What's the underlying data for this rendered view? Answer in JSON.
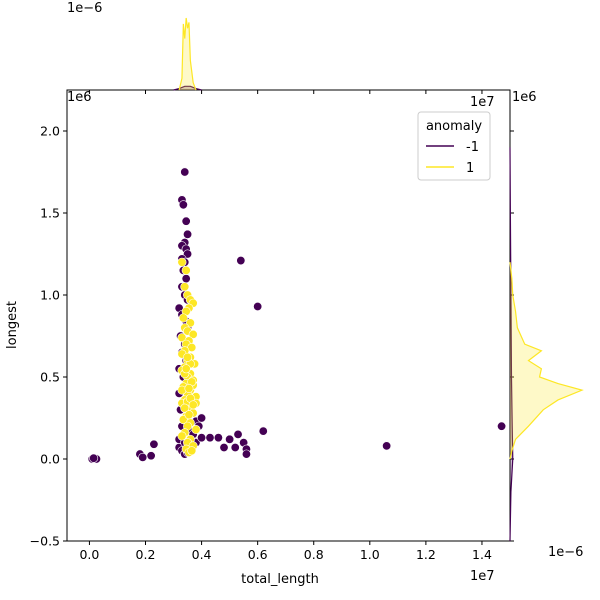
{
  "chart_data": {
    "type": "scatter",
    "xlabel": "total_length",
    "ylabel": "longest",
    "x_offset_label": "1e7",
    "y_offset_label": "1e6",
    "marg_x_offset_label": "1e−6",
    "marg_y_top_offset_label": "1e6",
    "marg_y_bottom_offset_label": "1e−6",
    "xlim": [
      -0.08,
      1.5
    ],
    "ylim": [
      -0.5,
      2.25
    ],
    "x_ticks": [
      0.0,
      0.2,
      0.4,
      0.6,
      0.8,
      1.0,
      1.2,
      1.4
    ],
    "x_tick_labels": [
      "0.0",
      "0.2",
      "0.4",
      "0.6",
      "0.8",
      "1.0",
      "1.2",
      "1.4"
    ],
    "y_ticks": [
      -0.5,
      0.0,
      0.5,
      1.0,
      1.5,
      2.0
    ],
    "y_tick_labels": [
      "−0.5",
      "0.0",
      "0.5",
      "1.0",
      "1.5",
      "2.0"
    ],
    "legend": {
      "title": "anomaly",
      "position": "top-right",
      "entries": [
        {
          "label": "-1",
          "color": "#440154"
        },
        {
          "label": "1",
          "color": "#fde725"
        }
      ]
    },
    "series": [
      {
        "name": "-1",
        "color": "#440154",
        "points": [
          [
            0.01,
            0.0
          ],
          [
            0.02,
            0.0
          ],
          [
            0.025,
            0.0
          ],
          [
            0.015,
            0.005
          ],
          [
            0.18,
            0.03
          ],
          [
            0.19,
            0.01
          ],
          [
            0.22,
            0.02
          ],
          [
            0.23,
            0.09
          ],
          [
            0.32,
            0.07
          ],
          [
            0.33,
            0.05
          ],
          [
            0.34,
            0.03
          ],
          [
            0.35,
            0.04
          ],
          [
            0.36,
            0.06
          ],
          [
            0.37,
            0.08
          ],
          [
            0.38,
            0.1
          ],
          [
            0.4,
            0.13
          ],
          [
            0.33,
            1.58
          ],
          [
            0.335,
            1.55
          ],
          [
            0.34,
            1.75
          ],
          [
            0.345,
            1.45
          ],
          [
            0.35,
            1.37
          ],
          [
            0.34,
            1.32
          ],
          [
            0.33,
            1.3
          ],
          [
            0.345,
            1.28
          ],
          [
            0.35,
            1.25
          ],
          [
            0.33,
            1.22
          ],
          [
            0.34,
            1.2
          ],
          [
            0.335,
            1.15
          ],
          [
            0.345,
            1.1
          ],
          [
            0.33,
            1.05
          ],
          [
            0.34,
            1.0
          ],
          [
            0.35,
            0.97
          ],
          [
            0.32,
            0.92
          ],
          [
            0.33,
            0.88
          ],
          [
            0.345,
            0.84
          ],
          [
            0.35,
            0.8
          ],
          [
            0.325,
            0.75
          ],
          [
            0.34,
            0.7
          ],
          [
            0.33,
            0.65
          ],
          [
            0.345,
            0.6
          ],
          [
            0.32,
            0.55
          ],
          [
            0.335,
            0.5
          ],
          [
            0.35,
            0.45
          ],
          [
            0.32,
            0.4
          ],
          [
            0.34,
            0.35
          ],
          [
            0.325,
            0.3
          ],
          [
            0.35,
            0.25
          ],
          [
            0.33,
            0.2
          ],
          [
            0.36,
            0.17
          ],
          [
            0.38,
            0.23
          ],
          [
            0.4,
            0.25
          ],
          [
            0.39,
            0.2
          ],
          [
            0.37,
            0.15
          ],
          [
            0.32,
            0.12
          ],
          [
            0.34,
            0.1
          ],
          [
            0.36,
            0.08
          ],
          [
            0.43,
            0.13
          ],
          [
            0.46,
            0.13
          ],
          [
            0.48,
            0.07
          ],
          [
            0.5,
            0.12
          ],
          [
            0.52,
            0.07
          ],
          [
            0.53,
            0.15
          ],
          [
            0.55,
            0.1
          ],
          [
            0.56,
            0.06
          ],
          [
            0.56,
            0.03
          ],
          [
            0.62,
            0.17
          ],
          [
            0.6,
            0.93
          ],
          [
            0.54,
            1.21
          ],
          [
            1.06,
            0.08
          ],
          [
            1.47,
            0.2
          ]
        ]
      },
      {
        "name": "1",
        "color": "#fde725",
        "points": [
          [
            0.33,
            1.2
          ],
          [
            0.345,
            1.15
          ],
          [
            0.34,
            1.05
          ],
          [
            0.35,
            1.0
          ],
          [
            0.36,
            0.97
          ],
          [
            0.37,
            0.95
          ],
          [
            0.355,
            0.92
          ],
          [
            0.345,
            0.9
          ],
          [
            0.335,
            0.86
          ],
          [
            0.36,
            0.83
          ],
          [
            0.34,
            0.8
          ],
          [
            0.35,
            0.78
          ],
          [
            0.37,
            0.76
          ],
          [
            0.33,
            0.74
          ],
          [
            0.355,
            0.72
          ],
          [
            0.345,
            0.7
          ],
          [
            0.365,
            0.68
          ],
          [
            0.34,
            0.66
          ],
          [
            0.33,
            0.64
          ],
          [
            0.36,
            0.62
          ],
          [
            0.35,
            0.6
          ],
          [
            0.375,
            0.58
          ],
          [
            0.34,
            0.56
          ],
          [
            0.33,
            0.54
          ],
          [
            0.36,
            0.52
          ],
          [
            0.35,
            0.5
          ],
          [
            0.37,
            0.48
          ],
          [
            0.345,
            0.46
          ],
          [
            0.335,
            0.44
          ],
          [
            0.36,
            0.42
          ],
          [
            0.35,
            0.4
          ],
          [
            0.38,
            0.38
          ],
          [
            0.34,
            0.36
          ],
          [
            0.33,
            0.34
          ],
          [
            0.36,
            0.32
          ],
          [
            0.35,
            0.3
          ],
          [
            0.37,
            0.28
          ],
          [
            0.345,
            0.26
          ],
          [
            0.335,
            0.24
          ],
          [
            0.36,
            0.22
          ],
          [
            0.35,
            0.2
          ],
          [
            0.38,
            0.18
          ],
          [
            0.34,
            0.16
          ],
          [
            0.33,
            0.14
          ],
          [
            0.36,
            0.12
          ],
          [
            0.35,
            0.1
          ],
          [
            0.37,
            0.08
          ],
          [
            0.345,
            0.06
          ],
          [
            0.355,
            0.04
          ],
          [
            0.365,
            0.05
          ],
          [
            0.34,
            0.52
          ],
          [
            0.36,
            0.58
          ],
          [
            0.35,
            0.62
          ],
          [
            0.37,
            0.45
          ],
          [
            0.33,
            0.42
          ],
          [
            0.38,
            0.34
          ],
          [
            0.35,
            0.35
          ],
          [
            0.36,
            0.37
          ],
          [
            0.34,
            0.31
          ],
          [
            0.37,
            0.33
          ],
          [
            0.355,
            0.27
          ],
          [
            0.345,
            0.55
          ],
          [
            0.365,
            0.47
          ],
          [
            0.355,
            0.43
          ]
        ]
      }
    ],
    "marginal_x": {
      "series": [
        {
          "name": "-1",
          "color": "#440154",
          "x": [
            0.3,
            0.32,
            0.34,
            0.36,
            0.38,
            0.4
          ],
          "density": [
            0.0,
            0.1,
            0.25,
            0.25,
            0.1,
            0.0
          ]
        },
        {
          "name": "1",
          "color": "#fde725",
          "x": [
            0.32,
            0.33,
            0.335,
            0.34,
            0.345,
            0.35,
            0.355,
            0.36,
            0.37,
            0.38
          ],
          "density": [
            0.0,
            0.8,
            4.5,
            3.5,
            4.9,
            4.2,
            4.6,
            2.0,
            0.5,
            0.0
          ]
        }
      ]
    },
    "marginal_y": {
      "series": [
        {
          "name": "-1",
          "color": "#440154",
          "y": [
            -0.5,
            -0.2,
            0.0,
            0.2,
            0.5,
            1.0,
            1.5,
            1.9
          ],
          "density": [
            0.0,
            0.05,
            0.15,
            0.12,
            0.08,
            0.05,
            0.02,
            0.0
          ]
        },
        {
          "name": "1",
          "color": "#fde725",
          "y": [
            0.0,
            0.05,
            0.12,
            0.2,
            0.3,
            0.36,
            0.42,
            0.46,
            0.5,
            0.55,
            0.6,
            0.66,
            0.7,
            0.8,
            0.9,
            1.0,
            1.1,
            1.2
          ],
          "density": [
            0.0,
            0.1,
            0.3,
            1.0,
            1.8,
            2.6,
            3.9,
            2.6,
            1.6,
            1.7,
            1.0,
            1.7,
            0.8,
            0.4,
            0.3,
            0.15,
            0.1,
            0.0
          ]
        }
      ]
    }
  }
}
